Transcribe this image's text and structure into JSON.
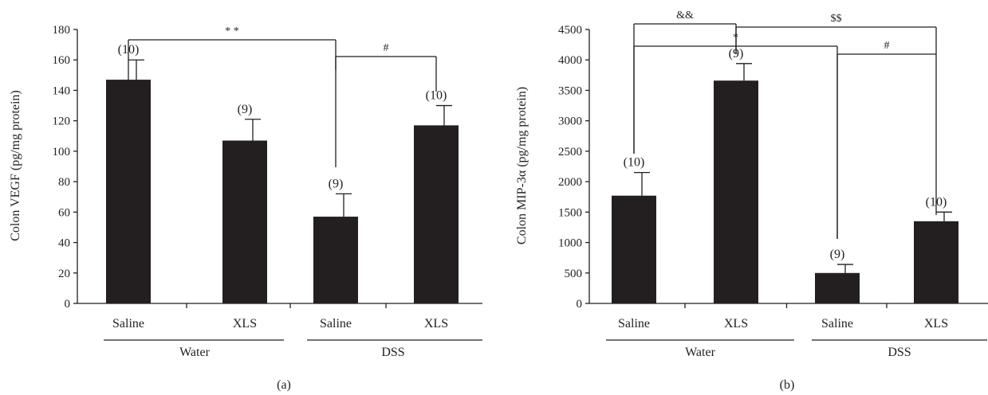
{
  "chart_data": [
    {
      "type": "bar",
      "panel_label": "(a)",
      "ylabel": "Colon VEGF (pg/mg protein)",
      "ylim": [
        0,
        180
      ],
      "yticks": [
        "0",
        "20",
        "40",
        "60",
        "80",
        "100",
        "120",
        "140",
        "160",
        "180"
      ],
      "categories": [
        "Saline",
        "XLS",
        "Saline",
        "XLS"
      ],
      "groups": [
        "Water",
        "DSS"
      ],
      "values": [
        147,
        107,
        57,
        117
      ],
      "errors": [
        13,
        14,
        15,
        13
      ],
      "n_labels": [
        "(10)",
        "(9)",
        "(9)",
        "(10)"
      ],
      "bar_color": "#231f20",
      "significance": [
        {
          "label": "* *",
          "from": 0,
          "to": 2
        },
        {
          "label": "#",
          "from": 2,
          "to": 3
        }
      ]
    },
    {
      "type": "bar",
      "panel_label": "(b)",
      "ylabel": "Colon MIP-3α (pg/mg protein)",
      "ylim": [
        0,
        4500
      ],
      "yticks": [
        "0",
        "500",
        "1000",
        "1500",
        "2000",
        "2500",
        "3000",
        "3500",
        "4000",
        "4500"
      ],
      "categories": [
        "Saline",
        "XLS",
        "Saline",
        "XLS"
      ],
      "groups": [
        "Water",
        "DSS"
      ],
      "values": [
        1770,
        3660,
        500,
        1350
      ],
      "errors": [
        380,
        280,
        140,
        150
      ],
      "n_labels": [
        "(10)",
        "(9)",
        "(9)",
        "(10)"
      ],
      "bar_color": "#231f20",
      "significance": [
        {
          "label": "&&",
          "from": 0,
          "to": 1
        },
        {
          "label": "$$",
          "from": 1,
          "to": 3
        },
        {
          "label": "*",
          "from": 0,
          "to": 2
        },
        {
          "label": "#",
          "from": 2,
          "to": 3
        }
      ]
    }
  ]
}
